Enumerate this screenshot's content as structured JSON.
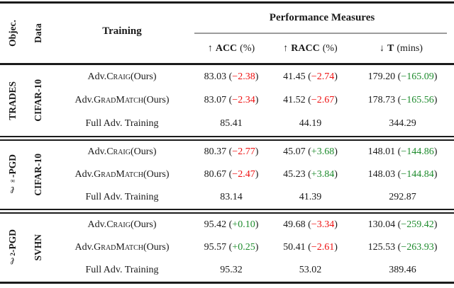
{
  "colors": {
    "red": "#ee1111",
    "green": "#1e8b2d"
  },
  "header": {
    "objective_label": "Objec.",
    "data_label": "Data",
    "training_label": "Training",
    "perf_label": "Performance Measures",
    "columns": [
      {
        "arrow": "↑",
        "name": "ACC",
        "unit": "(%)"
      },
      {
        "arrow": "↑",
        "name": "RACC",
        "unit": "(%)"
      },
      {
        "arrow": "↓",
        "name": "T",
        "unit": "(mins)"
      }
    ]
  },
  "groups": [
    {
      "objective": {
        "ell": "",
        "sub": "",
        "rest": "TRADES"
      },
      "dataset": "CIFAR-10",
      "rows": [
        {
          "training": {
            "pre": "Adv. ",
            "sc": "Craig",
            "post": " (Ours)"
          },
          "cells": [
            {
              "value": "83.03",
              "open": " (",
              "delta": "−2.38",
              "close": ")",
              "color": "red"
            },
            {
              "value": "41.45",
              "open": " (",
              "delta": "−2.74",
              "close": ")",
              "color": "red"
            },
            {
              "value": "179.20",
              "open": " (",
              "delta": "−165.09",
              "close": ")",
              "color": "green"
            }
          ]
        },
        {
          "training": {
            "pre": "Adv. ",
            "sc": "GradMatch",
            "post": " (Ours)"
          },
          "cells": [
            {
              "value": "83.07",
              "open": " (",
              "delta": "−2.34",
              "close": ")",
              "color": "red"
            },
            {
              "value": "41.52",
              "open": " (",
              "delta": "−2.67",
              "close": ")",
              "color": "red"
            },
            {
              "value": "178.73",
              "open": " (",
              "delta": "−165.56",
              "close": ")",
              "color": "green"
            }
          ]
        },
        {
          "training": {
            "pre": "Full Adv. Training",
            "sc": "",
            "post": ""
          },
          "cells": [
            {
              "value": "85.41"
            },
            {
              "value": "44.19"
            },
            {
              "value": "344.29"
            }
          ]
        }
      ]
    },
    {
      "objective": {
        "ell": "ℓ",
        "sub": "∞",
        "rest": "-PGD"
      },
      "dataset": "CIFAR-10",
      "rows": [
        {
          "training": {
            "pre": "Adv. ",
            "sc": "Craig",
            "post": " (Ours)"
          },
          "cells": [
            {
              "value": "80.37",
              "open": " (",
              "delta": "−2.77",
              "close": ")",
              "color": "red"
            },
            {
              "value": "45.07",
              "open": " (",
              "delta": "+3.68",
              "close": ")",
              "color": "green"
            },
            {
              "value": "148.01",
              "open": " (",
              "delta": "−144.86",
              "close": ")",
              "color": "green"
            }
          ]
        },
        {
          "training": {
            "pre": "Adv. ",
            "sc": "GradMatch",
            "post": " (Ours)"
          },
          "cells": [
            {
              "value": "80.67",
              "open": " (",
              "delta": "−2.47",
              "close": ")",
              "color": "red"
            },
            {
              "value": "45.23",
              "open": " (",
              "delta": "+3.84",
              "close": ")",
              "color": "green"
            },
            {
              "value": "148.03",
              "open": " (",
              "delta": "−144.84",
              "close": ")",
              "color": "green"
            }
          ]
        },
        {
          "training": {
            "pre": "Full Adv. Training",
            "sc": "",
            "post": ""
          },
          "cells": [
            {
              "value": "83.14"
            },
            {
              "value": "41.39"
            },
            {
              "value": "292.87"
            }
          ]
        }
      ]
    },
    {
      "objective": {
        "ell": "ℓ",
        "sub": "2",
        "rest": "-PGD"
      },
      "dataset": "SVHN",
      "rows": [
        {
          "training": {
            "pre": "Adv. ",
            "sc": "Craig",
            "post": " (Ours)"
          },
          "cells": [
            {
              "value": "95.42",
              "open": " (",
              "delta": "+0.10",
              "close": ")",
              "color": "green"
            },
            {
              "value": "49.68",
              "open": " (",
              "delta": "−3.34",
              "close": ")",
              "color": "red"
            },
            {
              "value": "130.04",
              "open": " (",
              "delta": "−259.42",
              "close": ")",
              "color": "green"
            }
          ]
        },
        {
          "training": {
            "pre": "Adv. ",
            "sc": "GradMatch",
            "post": " (Ours)"
          },
          "cells": [
            {
              "value": "95.57",
              "open": " (",
              "delta": "+0.25",
              "close": ")",
              "color": "green"
            },
            {
              "value": "50.41",
              "open": " (",
              "delta": "−2.61",
              "close": ")",
              "color": "red"
            },
            {
              "value": "125.53",
              "open": " (",
              "delta": "−263.93",
              "close": ")",
              "color": "green"
            }
          ]
        },
        {
          "training": {
            "pre": "Full Adv. Training",
            "sc": "",
            "post": ""
          },
          "cells": [
            {
              "value": "95.32"
            },
            {
              "value": "53.02"
            },
            {
              "value": "389.46"
            }
          ]
        }
      ]
    }
  ]
}
